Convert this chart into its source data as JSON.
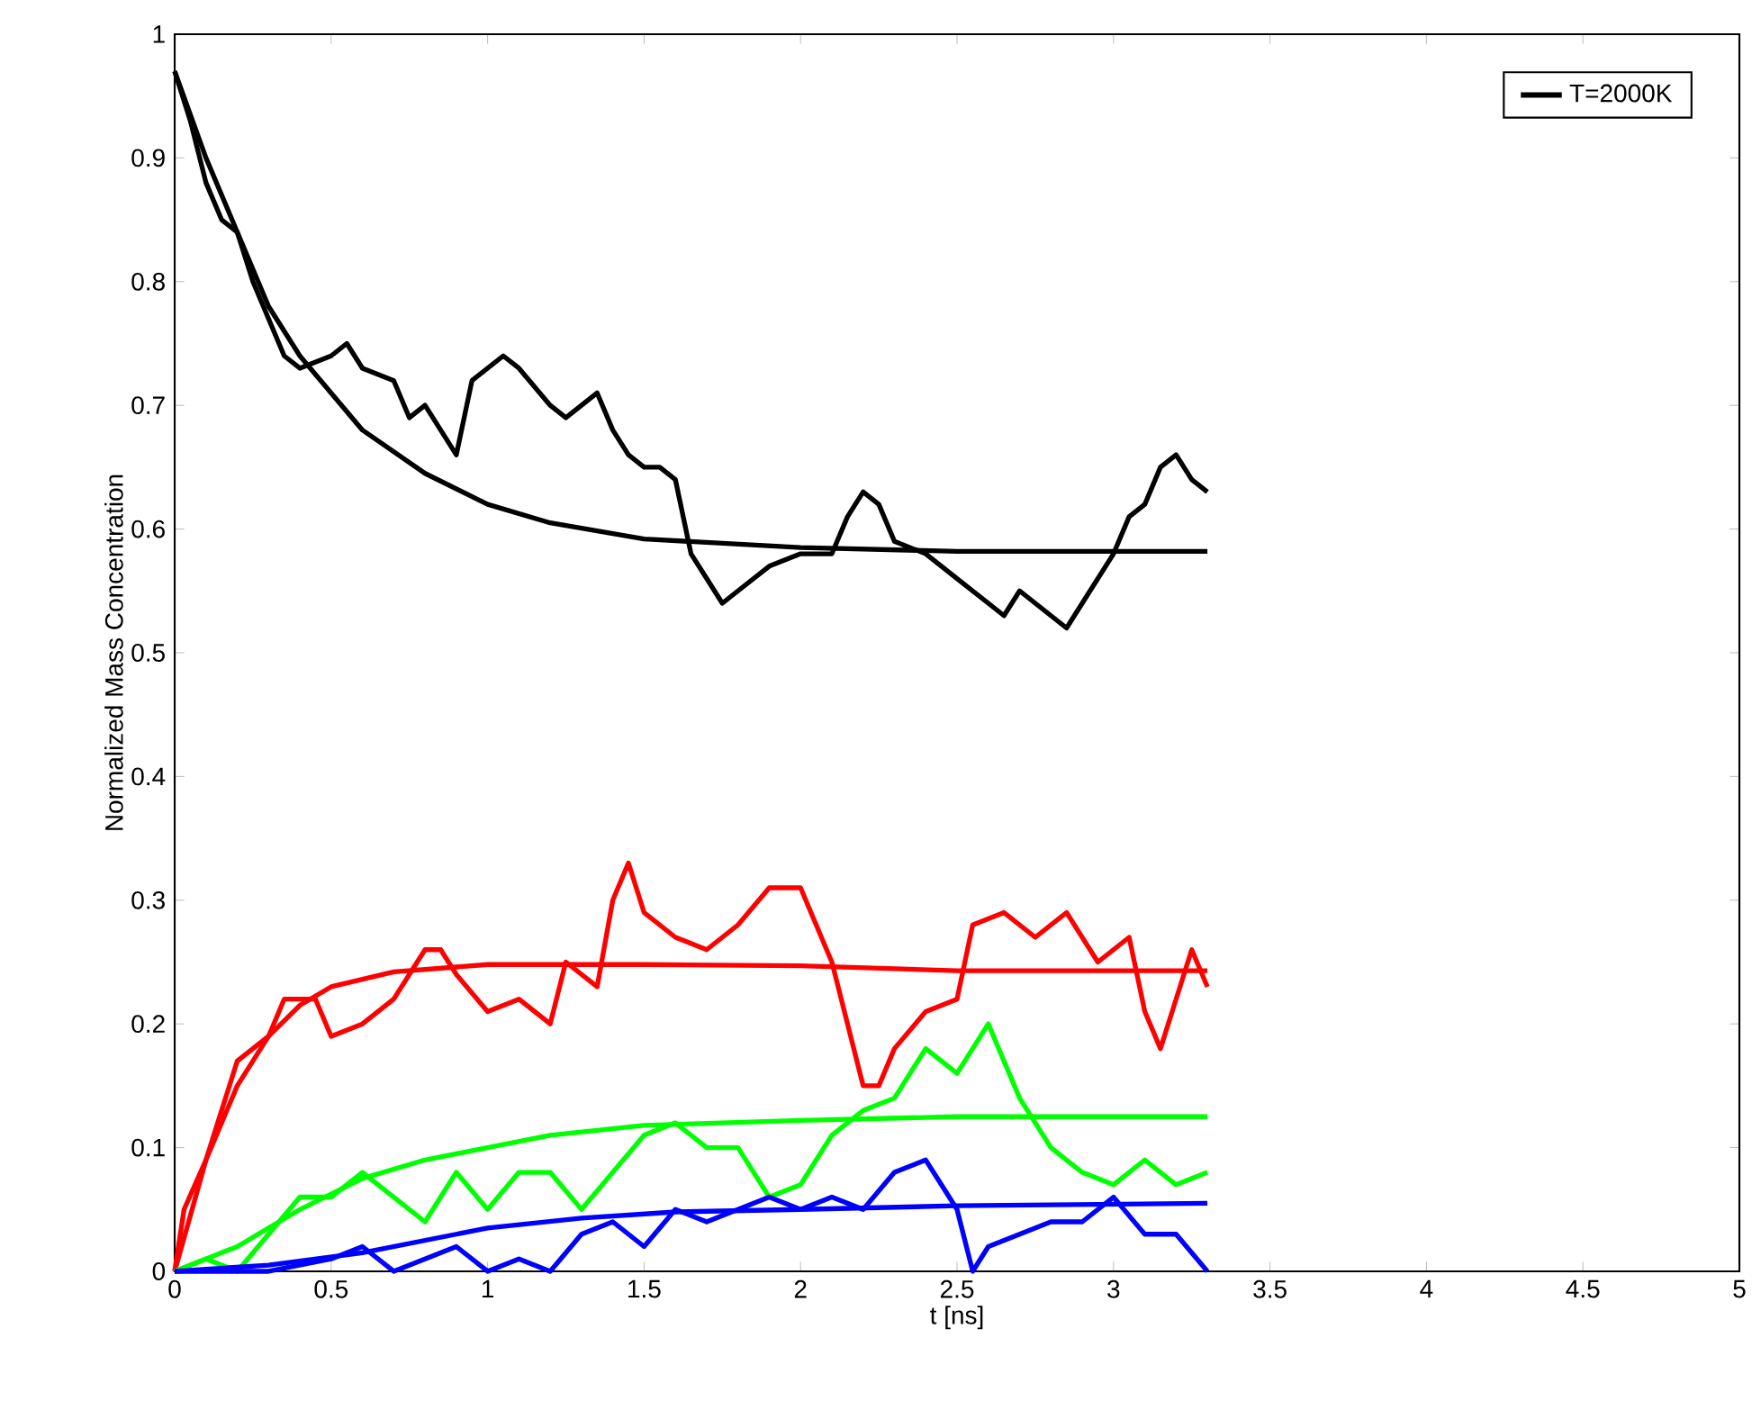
{
  "chart_data": {
    "type": "line",
    "xlabel": "t [ns]",
    "ylabel": "Normalized Mass Concentration",
    "legend": "top right",
    "xlim": [
      0,
      5
    ],
    "ylim": [
      0,
      1
    ],
    "xticks": [
      0,
      0.5,
      1,
      1.5,
      2,
      2.5,
      3,
      3.5,
      4,
      4.5,
      5
    ],
    "yticks": [
      0,
      0.1,
      0.2,
      0.3,
      0.4,
      0.5,
      0.6,
      0.7,
      0.8,
      0.9,
      1
    ],
    "series": [
      {
        "name": "T=2000K",
        "color": "#000000",
        "x": [
          0,
          0.05,
          0.1,
          0.15,
          0.2,
          0.25,
          0.3,
          0.35,
          0.4,
          0.5,
          0.55,
          0.6,
          0.7,
          0.75,
          0.8,
          0.85,
          0.9,
          0.95,
          1.0,
          1.05,
          1.1,
          1.2,
          1.25,
          1.3,
          1.35,
          1.4,
          1.45,
          1.5,
          1.55,
          1.6,
          1.65,
          1.7,
          1.75,
          1.8,
          1.9,
          2.0,
          2.1,
          2.15,
          2.2,
          2.25,
          2.3,
          2.4,
          2.5,
          2.6,
          2.65,
          2.7,
          2.8,
          2.85,
          2.9,
          3.0,
          3.05,
          3.1,
          3.15,
          3.2,
          3.25,
          3.3
        ],
        "values": [
          0.97,
          0.93,
          0.88,
          0.85,
          0.84,
          0.8,
          0.77,
          0.74,
          0.73,
          0.74,
          0.75,
          0.73,
          0.72,
          0.69,
          0.7,
          0.68,
          0.66,
          0.72,
          0.73,
          0.74,
          0.73,
          0.7,
          0.69,
          0.7,
          0.71,
          0.68,
          0.66,
          0.65,
          0.65,
          0.64,
          0.58,
          0.56,
          0.54,
          0.55,
          0.57,
          0.58,
          0.58,
          0.61,
          0.63,
          0.62,
          0.59,
          0.58,
          0.56,
          0.54,
          0.53,
          0.55,
          0.53,
          0.52,
          0.54,
          0.58,
          0.61,
          0.62,
          0.65,
          0.66,
          0.64,
          0.63
        ]
      },
      {
        "color": "#000000",
        "x": [
          0,
          0.1,
          0.2,
          0.3,
          0.4,
          0.5,
          0.6,
          0.8,
          1.0,
          1.2,
          1.5,
          2.0,
          2.5,
          3.3
        ],
        "values": [
          0.97,
          0.9,
          0.84,
          0.78,
          0.74,
          0.71,
          0.68,
          0.645,
          0.62,
          0.605,
          0.592,
          0.585,
          0.582,
          0.582
        ]
      },
      {
        "color": "#ff0000",
        "x": [
          0,
          0.03,
          0.1,
          0.15,
          0.2,
          0.3,
          0.35,
          0.45,
          0.5,
          0.6,
          0.7,
          0.8,
          0.85,
          0.9,
          1.0,
          1.1,
          1.2,
          1.25,
          1.35,
          1.4,
          1.45,
          1.5,
          1.6,
          1.7,
          1.8,
          1.9,
          2.0,
          2.05,
          2.1,
          2.15,
          2.2,
          2.25,
          2.3,
          2.4,
          2.5,
          2.55,
          2.65,
          2.75,
          2.85,
          2.95,
          3.05,
          3.1,
          3.15,
          3.2,
          3.25,
          3.3
        ],
        "values": [
          0.0,
          0.05,
          0.09,
          0.13,
          0.17,
          0.19,
          0.22,
          0.22,
          0.19,
          0.2,
          0.22,
          0.26,
          0.26,
          0.24,
          0.21,
          0.22,
          0.2,
          0.25,
          0.23,
          0.3,
          0.33,
          0.29,
          0.27,
          0.26,
          0.28,
          0.31,
          0.31,
          0.28,
          0.25,
          0.2,
          0.15,
          0.15,
          0.18,
          0.21,
          0.22,
          0.28,
          0.29,
          0.27,
          0.29,
          0.25,
          0.27,
          0.21,
          0.18,
          0.22,
          0.26,
          0.23
        ]
      },
      {
        "color": "#ff0000",
        "x": [
          0,
          0.1,
          0.2,
          0.3,
          0.4,
          0.5,
          0.7,
          1.0,
          1.5,
          2.0,
          2.5,
          3.3
        ],
        "values": [
          0.0,
          0.09,
          0.15,
          0.19,
          0.215,
          0.23,
          0.242,
          0.248,
          0.248,
          0.247,
          0.243,
          0.243
        ]
      },
      {
        "color": "#00ff00",
        "x": [
          0,
          0.1,
          0.2,
          0.3,
          0.4,
          0.5,
          0.6,
          0.7,
          0.8,
          0.9,
          1.0,
          1.1,
          1.2,
          1.3,
          1.4,
          1.5,
          1.6,
          1.7,
          1.8,
          1.9,
          2.0,
          2.1,
          2.2,
          2.3,
          2.4,
          2.5,
          2.6,
          2.7,
          2.8,
          2.9,
          3.0,
          3.1,
          3.2,
          3.3
        ],
        "values": [
          0.0,
          0.01,
          0.0,
          0.03,
          0.06,
          0.06,
          0.08,
          0.06,
          0.04,
          0.08,
          0.05,
          0.08,
          0.08,
          0.05,
          0.08,
          0.11,
          0.12,
          0.1,
          0.1,
          0.06,
          0.07,
          0.11,
          0.13,
          0.14,
          0.18,
          0.16,
          0.2,
          0.14,
          0.1,
          0.08,
          0.07,
          0.09,
          0.07,
          0.08
        ]
      },
      {
        "color": "#00ff00",
        "x": [
          0,
          0.2,
          0.4,
          0.6,
          0.8,
          1.0,
          1.2,
          1.5,
          2.0,
          2.5,
          3.3
        ],
        "values": [
          0.0,
          0.02,
          0.05,
          0.075,
          0.09,
          0.1,
          0.11,
          0.118,
          0.122,
          0.125,
          0.125
        ]
      },
      {
        "color": "#0000ff",
        "x": [
          0,
          0.3,
          0.5,
          0.6,
          0.7,
          0.8,
          0.9,
          1.0,
          1.1,
          1.2,
          1.3,
          1.4,
          1.5,
          1.6,
          1.7,
          1.8,
          1.9,
          2.0,
          2.1,
          2.2,
          2.3,
          2.4,
          2.45,
          2.5,
          2.55,
          2.6,
          2.7,
          2.8,
          2.9,
          3.0,
          3.1,
          3.2,
          3.3
        ],
        "values": [
          0.0,
          0.0,
          0.01,
          0.02,
          0.0,
          0.01,
          0.02,
          0.0,
          0.01,
          0.0,
          0.03,
          0.04,
          0.02,
          0.05,
          0.04,
          0.05,
          0.06,
          0.05,
          0.06,
          0.05,
          0.08,
          0.09,
          0.07,
          0.05,
          0.0,
          0.02,
          0.03,
          0.04,
          0.04,
          0.06,
          0.03,
          0.03,
          0.0
        ]
      },
      {
        "color": "#0000ff",
        "x": [
          0,
          0.3,
          0.6,
          0.8,
          1.0,
          1.3,
          1.6,
          2.0,
          2.5,
          3.3
        ],
        "values": [
          0.0,
          0.005,
          0.015,
          0.025,
          0.035,
          0.043,
          0.048,
          0.05,
          0.053,
          0.055
        ]
      }
    ]
  }
}
